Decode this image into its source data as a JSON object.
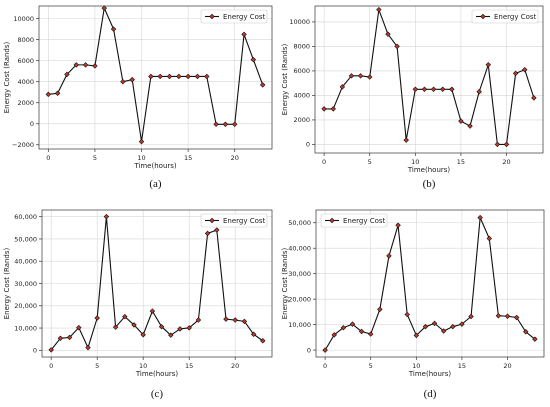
{
  "colors": {
    "line": "#111111",
    "marker": "#c0392b",
    "grid": "#d6d6d6"
  },
  "chart_data": [
    {
      "type": "line",
      "caption": "(a)",
      "xlabel": "Time(hours)",
      "ylabel": "Energy Cost (Rands)",
      "legend": {
        "label": "Energy Cost",
        "position": "top-right"
      },
      "grid": true,
      "xlim": [
        -1,
        24
      ],
      "ylim": [
        -2400,
        11200
      ],
      "x_ticks": [
        0,
        5,
        10,
        15,
        20
      ],
      "x_tick_labels": [
        "0",
        "5",
        "10",
        "15",
        "20"
      ],
      "y_ticks": [
        -2000,
        0,
        2000,
        4000,
        6000,
        8000,
        10000
      ],
      "y_tick_labels": [
        "−2000",
        "0",
        "2000",
        "4000",
        "6000",
        "8000",
        "10000"
      ],
      "x": [
        0,
        1,
        2,
        3,
        4,
        5,
        6,
        7,
        8,
        9,
        10,
        11,
        12,
        13,
        14,
        15,
        16,
        17,
        18,
        19,
        20,
        21,
        22,
        23
      ],
      "values": [
        2800,
        2900,
        4700,
        5600,
        5600,
        5500,
        11000,
        9000,
        4000,
        4200,
        -1700,
        4500,
        4500,
        4500,
        4500,
        4500,
        4500,
        4500,
        -50,
        -50,
        -50,
        8500,
        6100,
        3700
      ]
    },
    {
      "type": "line",
      "caption": "(b)",
      "xlabel": "Time(hours)",
      "ylabel": "Energy Cost (Rands)",
      "legend": {
        "label": "Energy Cost",
        "position": "top-right"
      },
      "grid": true,
      "xlim": [
        -1,
        24
      ],
      "ylim": [
        -700,
        11300
      ],
      "x_ticks": [
        0,
        5,
        10,
        15,
        20
      ],
      "x_tick_labels": [
        "0",
        "5",
        "10",
        "15",
        "20"
      ],
      "y_ticks": [
        0,
        2000,
        4000,
        6000,
        8000,
        10000
      ],
      "y_tick_labels": [
        "0",
        "2000",
        "4000",
        "6000",
        "8000",
        "10000"
      ],
      "x": [
        0,
        1,
        2,
        3,
        4,
        5,
        6,
        7,
        8,
        9,
        10,
        11,
        12,
        13,
        14,
        15,
        16,
        17,
        18,
        19,
        20,
        21,
        22,
        23
      ],
      "values": [
        2900,
        2900,
        4700,
        5600,
        5600,
        5500,
        11000,
        9000,
        8000,
        350,
        4500,
        4500,
        4500,
        4500,
        4500,
        1900,
        1500,
        4300,
        6500,
        0,
        0,
        5800,
        6100,
        3800
      ]
    },
    {
      "type": "line",
      "caption": "(c)",
      "xlabel": "Time(hours)",
      "ylabel": "Energy Cost (Rands)",
      "legend": {
        "label": "Energy Cost",
        "position": "top-right"
      },
      "grid": true,
      "xlim": [
        -1,
        24
      ],
      "ylim": [
        -3000,
        63000
      ],
      "x_ticks": [
        0,
        5,
        10,
        15,
        20
      ],
      "x_tick_labels": [
        "0",
        "5",
        "10",
        "15",
        "20"
      ],
      "y_ticks": [
        0,
        10000,
        20000,
        30000,
        40000,
        50000,
        60000
      ],
      "y_tick_labels": [
        "0",
        "10,000",
        "20,000",
        "30,000",
        "40,000",
        "50,000",
        "60,000"
      ],
      "x": [
        0,
        1,
        2,
        3,
        4,
        5,
        6,
        7,
        8,
        9,
        10,
        11,
        12,
        13,
        14,
        15,
        16,
        17,
        18,
        19,
        20,
        21,
        22,
        23
      ],
      "values": [
        200,
        5400,
        5800,
        10200,
        1200,
        14500,
        60000,
        10400,
        15100,
        11400,
        7000,
        17600,
        10600,
        6800,
        9600,
        10100,
        13600,
        52500,
        54000,
        14000,
        13600,
        13000,
        7200,
        4300
      ]
    },
    {
      "type": "line",
      "caption": "(d)",
      "xlabel": "Time(hours)",
      "ylabel": "Energy Cost (Rands)",
      "legend": {
        "label": "Energy Cost",
        "position": "top-left"
      },
      "grid": true,
      "xlim": [
        -1,
        24
      ],
      "ylim": [
        -2700,
        55000
      ],
      "x_ticks": [
        0,
        5,
        10,
        15,
        20
      ],
      "x_tick_labels": [
        "0",
        "5",
        "10",
        "15",
        "20"
      ],
      "y_ticks": [
        0,
        10000,
        20000,
        30000,
        40000,
        50000
      ],
      "y_tick_labels": [
        "0",
        "10,000",
        "20,000",
        "30,000",
        "40,000",
        "50,000"
      ],
      "x": [
        0,
        1,
        2,
        3,
        4,
        5,
        6,
        7,
        8,
        9,
        10,
        11,
        12,
        13,
        14,
        15,
        16,
        17,
        18,
        19,
        20,
        21,
        22,
        23
      ],
      "values": [
        0,
        6000,
        8800,
        10200,
        7300,
        6300,
        16000,
        37000,
        49000,
        14000,
        5800,
        9200,
        10500,
        7500,
        9200,
        10200,
        13200,
        52000,
        43800,
        13500,
        13300,
        12800,
        7200,
        4300
      ]
    }
  ]
}
